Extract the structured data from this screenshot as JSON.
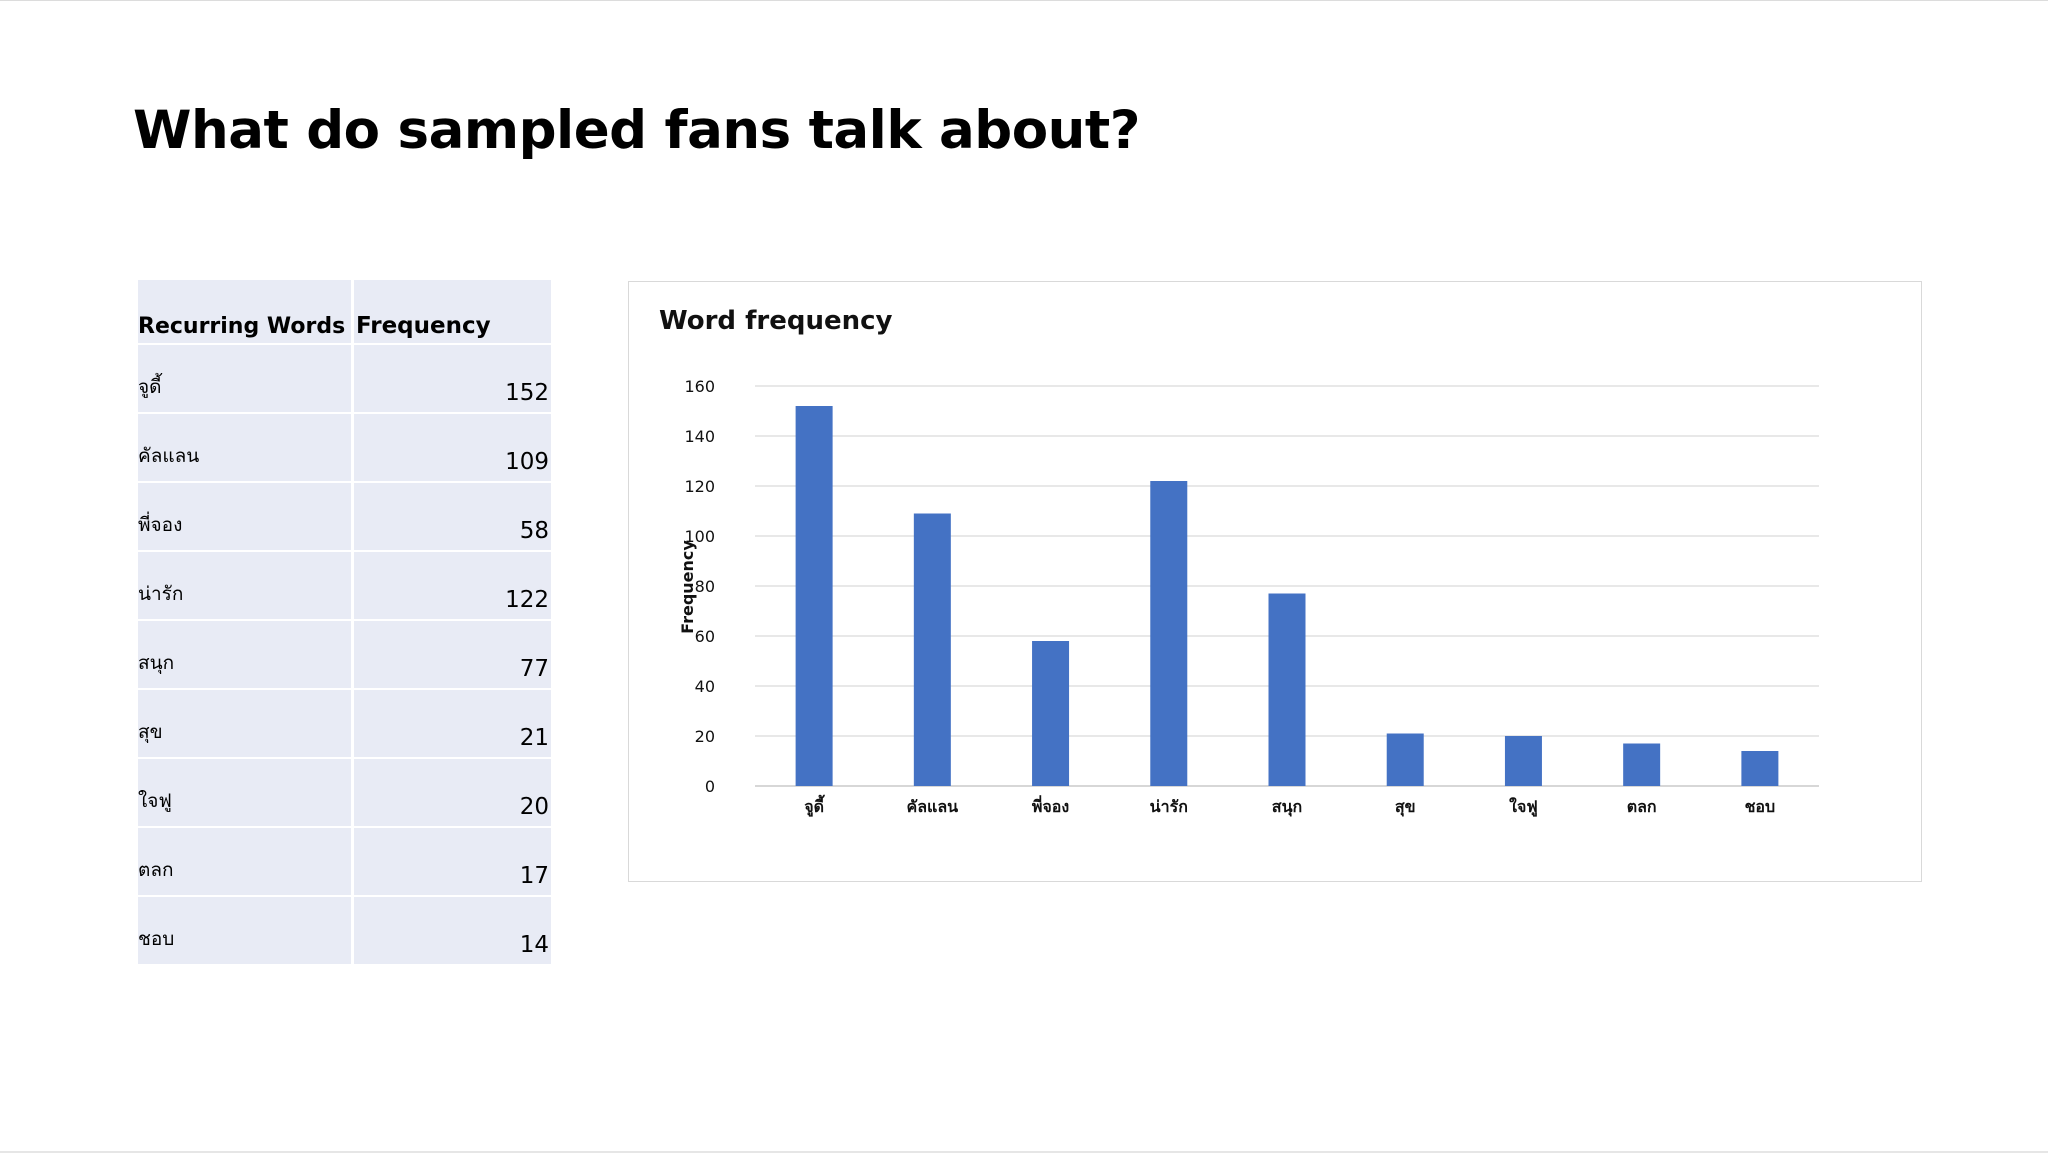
{
  "page": {
    "title": "What do sampled fans talk about?"
  },
  "table": {
    "headers": [
      "Recurring Words",
      "Frequency"
    ],
    "rows": [
      {
        "word": "จูดี้",
        "frequency": "152"
      },
      {
        "word": "คัลแลน",
        "frequency": "109"
      },
      {
        "word": "พี่จอง",
        "frequency": "58"
      },
      {
        "word": "น่ารัก",
        "frequency": "122"
      },
      {
        "word": "สนุก",
        "frequency": "77"
      },
      {
        "word": "สุข",
        "frequency": "21"
      },
      {
        "word": "ใจฟู",
        "frequency": "20"
      },
      {
        "word": "ตลก",
        "frequency": "17"
      },
      {
        "word": "ชอบ",
        "frequency": "14"
      }
    ]
  },
  "colors": {
    "bar": "#4472c4",
    "table_fill": "#e8ebf5",
    "grid": "#d9d9d9"
  },
  "chart_data": {
    "type": "bar",
    "title": "Word frequency",
    "xlabel": "",
    "ylabel": "Frequency",
    "categories": [
      "จูดี้",
      "คัลแลน",
      "พี่จอง",
      "น่ารัก",
      "สนุก",
      "สุข",
      "ใจฟู",
      "ตลก",
      "ชอบ"
    ],
    "values": [
      152,
      109,
      58,
      122,
      77,
      21,
      20,
      17,
      14
    ],
    "ylim": [
      0,
      160
    ],
    "yticks": [
      0,
      20,
      40,
      60,
      80,
      100,
      120,
      140,
      160
    ],
    "grid": true,
    "legend": "none"
  }
}
